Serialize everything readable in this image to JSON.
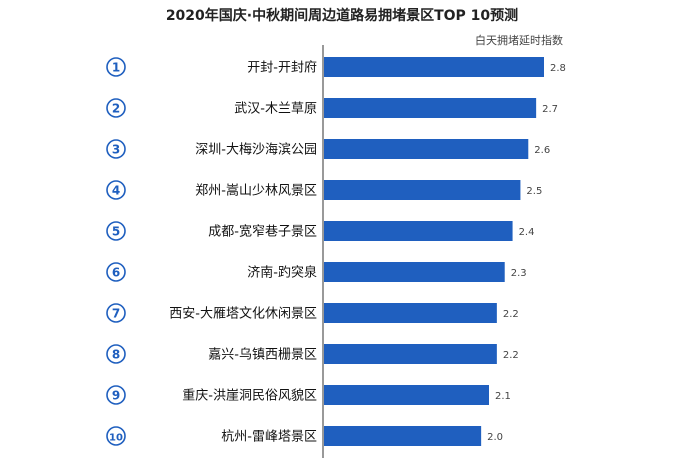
{
  "chart_data": {
    "type": "bar",
    "orientation": "horizontal",
    "title": "2020年国庆·中秋期间周边道路易拥堵景区TOP 10预测",
    "subtitle": "白天拥堵延时指数",
    "ranks": [
      "1",
      "2",
      "3",
      "4",
      "5",
      "6",
      "7",
      "8",
      "9",
      "10"
    ],
    "categories": [
      "开封-开封府",
      "武汉-木兰草原",
      "深圳-大梅沙海滨公园",
      "郑州-嵩山少林风景区",
      "成都-宽窄巷子景区",
      "济南-趵突泉",
      "西安-大雁塔文化休闲景区",
      "嘉兴-乌镇西栅景区",
      "重庆-洪崖洞民俗风貌区",
      "杭州-雷峰塔景区"
    ],
    "values": [
      2.8,
      2.7,
      2.6,
      2.5,
      2.4,
      2.3,
      2.2,
      2.2,
      2.1,
      2.0
    ],
    "value_labels": [
      "2.8",
      "2.7",
      "2.6",
      "2.5",
      "2.4",
      "2.3",
      "2.2",
      "2.2",
      "2.1",
      "2.0"
    ],
    "xlim": [
      0,
      2.8
    ],
    "bar_color": "#1f5fbf",
    "axis_color": "#333333",
    "grid": false,
    "legend": "none"
  }
}
